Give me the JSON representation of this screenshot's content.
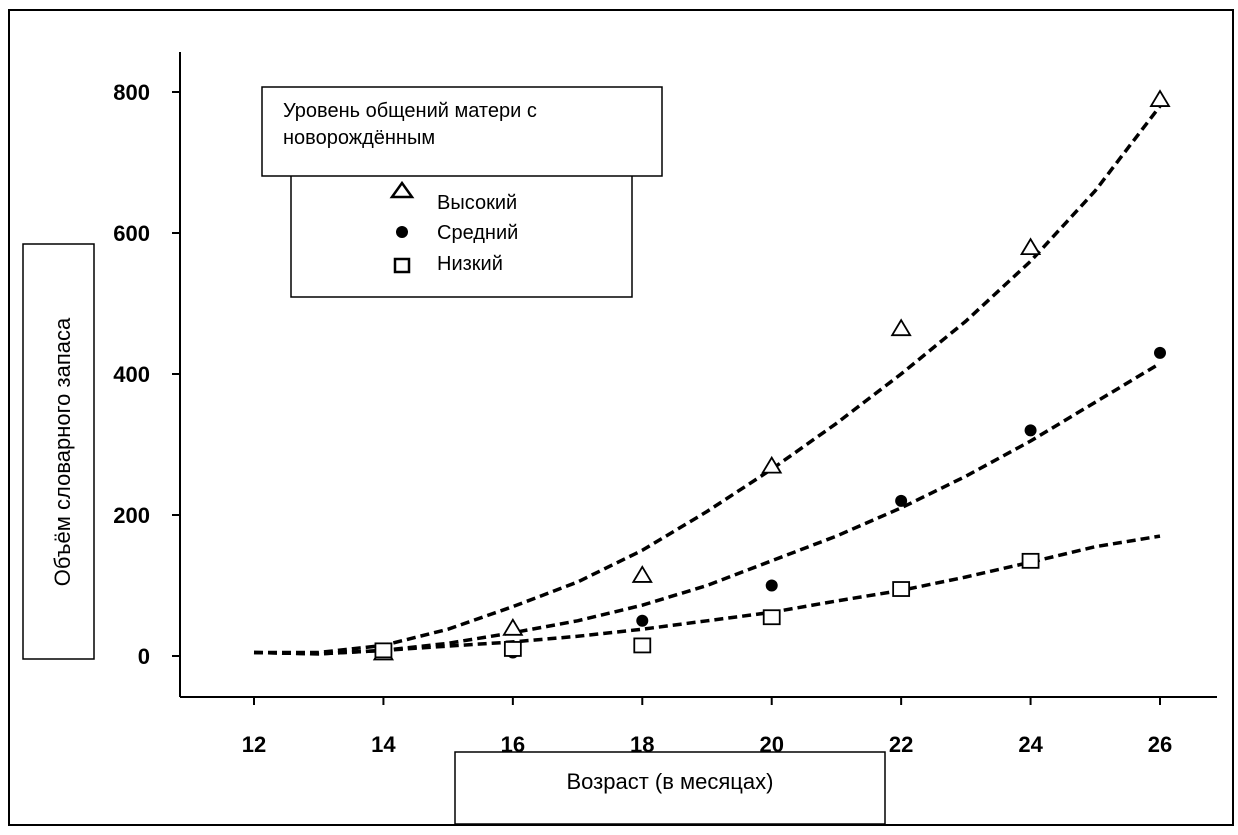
{
  "chart_data": {
    "type": "scatter",
    "xlabel": "Возраст (в месяцах)",
    "ylabel": "Объём словарного запаса",
    "x_ticks": [
      12,
      14,
      16,
      18,
      20,
      22,
      24,
      26
    ],
    "y_ticks": [
      0,
      200,
      400,
      600,
      800
    ],
    "xlim": [
      12,
      26
    ],
    "ylim": [
      0,
      800
    ],
    "grid": false,
    "legend": {
      "title_lines": [
        "Уровень общений матери с",
        "новорождённым"
      ],
      "placement": "top-left"
    },
    "series": [
      {
        "name": "Высокий",
        "marker": "triangle",
        "x": [
          14,
          16,
          18,
          20,
          22,
          24,
          26
        ],
        "y": [
          5,
          40,
          115,
          270,
          465,
          580,
          790
        ],
        "trend": "dashed"
      },
      {
        "name": "Средний",
        "marker": "circle",
        "x": [
          14,
          16,
          18,
          20,
          22,
          24,
          26
        ],
        "y": [
          10,
          5,
          50,
          100,
          220,
          320,
          430
        ],
        "trend": "dashed"
      },
      {
        "name": "Низкий",
        "marker": "square",
        "x": [
          14,
          16,
          18,
          20,
          22,
          24
        ],
        "y": [
          8,
          10,
          15,
          55,
          95,
          135
        ],
        "trend": "dashed"
      }
    ],
    "trend_lines": [
      {
        "series": "Высокий",
        "x": [
          12,
          13,
          14,
          15,
          16,
          17,
          18,
          19,
          20,
          21,
          22,
          23,
          24,
          25,
          26
        ],
        "y": [
          5,
          5,
          15,
          38,
          70,
          105,
          150,
          205,
          265,
          330,
          400,
          475,
          560,
          660,
          780
        ]
      },
      {
        "series": "Средний",
        "x": [
          12,
          13,
          14,
          15,
          16,
          17,
          18,
          19,
          20,
          21,
          22,
          23,
          24,
          25,
          26
        ],
        "y": [
          5,
          3,
          8,
          18,
          33,
          50,
          72,
          100,
          135,
          170,
          210,
          255,
          305,
          360,
          415
        ]
      },
      {
        "series": "Низкий",
        "x": [
          12,
          13,
          14,
          15,
          16,
          17,
          18,
          19,
          20,
          21,
          22,
          23,
          24,
          25,
          26
        ],
        "y": [
          5,
          3,
          8,
          14,
          20,
          28,
          38,
          50,
          62,
          78,
          93,
          112,
          133,
          155,
          170
        ]
      }
    ]
  }
}
